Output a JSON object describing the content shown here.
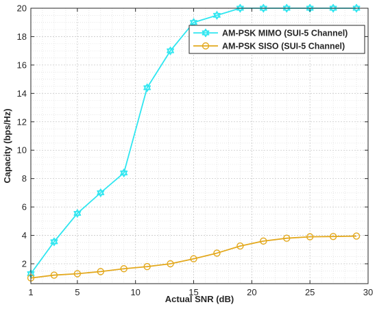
{
  "chart_data": {
    "type": "line",
    "title": "",
    "xlabel": "Actual SNR (dB)",
    "ylabel": "Capacity (bps/Hz)",
    "xlim": [
      1,
      30
    ],
    "ylim": [
      0.6,
      20
    ],
    "xticks": [
      "1",
      "5",
      "10",
      "15",
      "20",
      "25",
      "30"
    ],
    "yticks": [
      "2",
      "4",
      "6",
      "8",
      "10",
      "12",
      "14",
      "16",
      "18",
      "20"
    ],
    "grid": true,
    "minor_grid": true,
    "legend_position": "top-right",
    "series": [
      {
        "name": "AM-PSK MIMO (SUI-5 Channel)",
        "color": "#2ee6f0",
        "marker": "hexagram",
        "x": [
          1,
          3,
          5,
          7,
          9,
          11,
          13,
          15,
          17,
          19,
          21,
          23,
          25,
          27,
          29
        ],
        "y": [
          1.3,
          3.55,
          5.55,
          7.0,
          8.4,
          14.4,
          17.0,
          19.0,
          19.5,
          20.0,
          20.0,
          20.0,
          20.0,
          20.0,
          20.0
        ]
      },
      {
        "name": "AM-PSK SISO (SUI-5 Channel)",
        "color": "#e3a81c",
        "marker": "circle",
        "x": [
          1,
          3,
          5,
          7,
          9,
          11,
          13,
          15,
          17,
          19,
          21,
          23,
          25,
          27,
          29
        ],
        "y": [
          1.0,
          1.2,
          1.3,
          1.45,
          1.65,
          1.8,
          2.0,
          2.35,
          2.75,
          3.25,
          3.6,
          3.8,
          3.9,
          3.92,
          3.95
        ]
      }
    ]
  }
}
